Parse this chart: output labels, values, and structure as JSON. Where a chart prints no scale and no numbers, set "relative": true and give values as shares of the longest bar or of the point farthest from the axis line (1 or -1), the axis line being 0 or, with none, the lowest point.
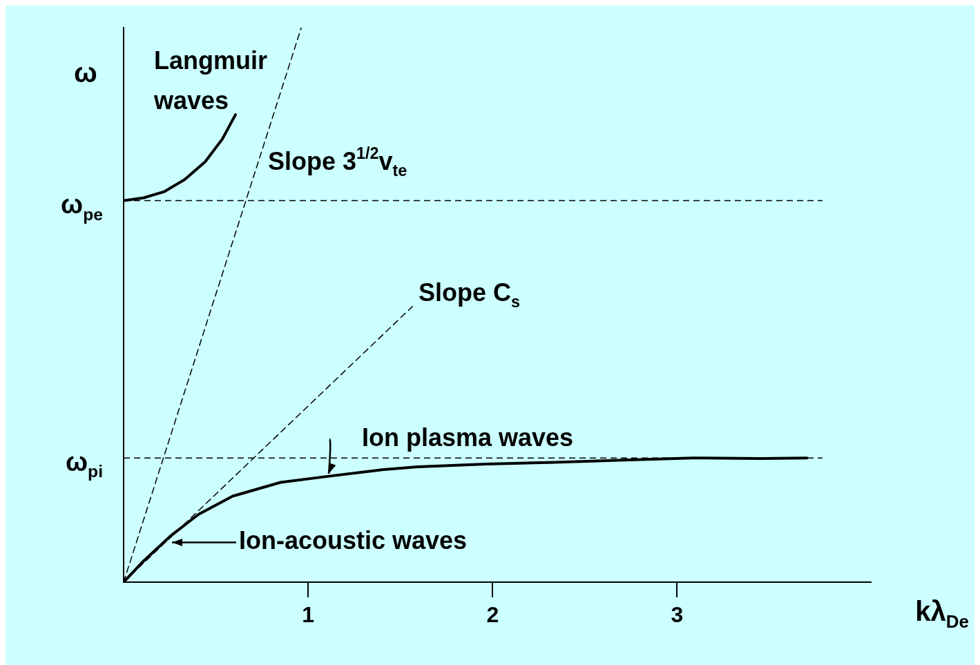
{
  "chart_data": {
    "type": "line",
    "relative": true,
    "xlabel": "kλ$_{De}$",
    "ylabel": "ω",
    "xlim": [
      0,
      4.05
    ],
    "xticks": [
      1,
      2,
      3
    ],
    "tick_labels": "x",
    "grid": false,
    "legend": false,
    "marker": "none",
    "series": [
      {
        "color": "#000000",
        "line_style": "solid",
        "x": [
          0,
          0.108,
          0.219,
          0.331,
          0.442,
          0.535,
          0.606
        ],
        "values": [
          0.688,
          0.693,
          0.704,
          0.726,
          0.758,
          0.799,
          0.843
        ]
      },
      {
        "color": "#000000",
        "line_style": "dashed",
        "x": [
          0,
          0.963
        ],
        "values": [
          0,
          1
        ]
      },
      {
        "color": "#000000",
        "line_style": "dashed",
        "x": [
          0,
          1.565
        ],
        "values": [
          0,
          0.497
        ]
      },
      {
        "color": "#000000",
        "line_style": "solid",
        "x": [
          0,
          0.108,
          0.257,
          0.405,
          0.591,
          0.851,
          1.112,
          1.409,
          1.595,
          1.967,
          2.338,
          2.71,
          3.082,
          3.454,
          3.703
        ],
        "values": [
          0,
          0.038,
          0.084,
          0.122,
          0.155,
          0.18,
          0.191,
          0.203,
          0.208,
          0.213,
          0.216,
          0.22,
          0.224,
          0.223,
          0.224
        ]
      }
    ],
    "ref_lines": [
      {
        "axis": "y",
        "value": 0.688,
        "label": "ω$_{pe}$",
        "line_style": "dashed"
      },
      {
        "axis": "y",
        "value": 0.224,
        "label": "ω$_{pi}$",
        "line_style": "dashed"
      }
    ],
    "annotations": [
      "Langmuir\nwaves",
      "Slope 3$^{1/2}$v$_{te}$",
      "Slope C$_{s}$",
      "Ion plasma waves",
      "Ion-acoustic waves"
    ]
  }
}
